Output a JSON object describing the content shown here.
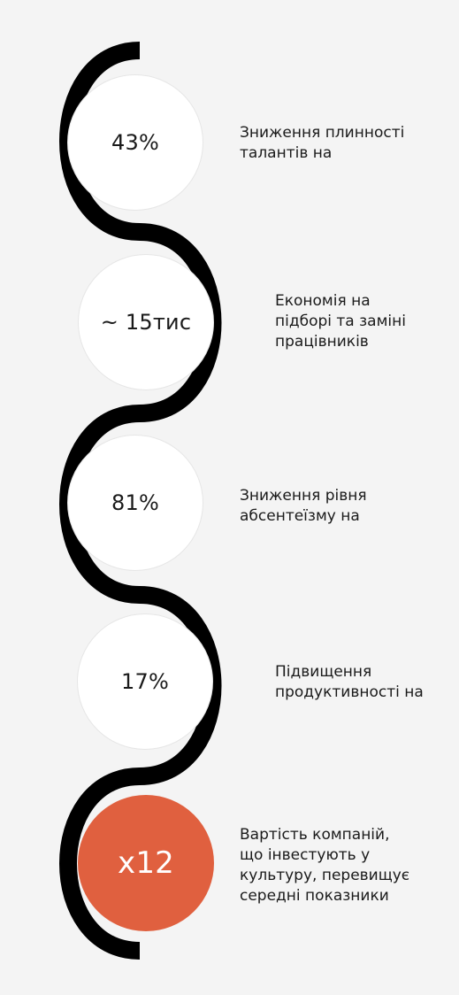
{
  "colors": {
    "background": "#f4f4f4",
    "path": "#000000",
    "circle": "#ffffff",
    "accent": "#e0603f"
  },
  "stats": [
    {
      "value": "43%",
      "description": "Зниження плинності\nталантів на"
    },
    {
      "value": "~ 15тис",
      "description": "Економія на\nпідборі та заміні\nпрацівників"
    },
    {
      "value": "81%",
      "description": "Зниження рівня\nабсентеїзму на"
    },
    {
      "value": "17%",
      "description": "Підвищення\nпродуктивності на"
    },
    {
      "value": "x12",
      "description": "Вартість компаній,\nщо інвестують у\nкультуру, перевищує\nсередні показники"
    }
  ]
}
